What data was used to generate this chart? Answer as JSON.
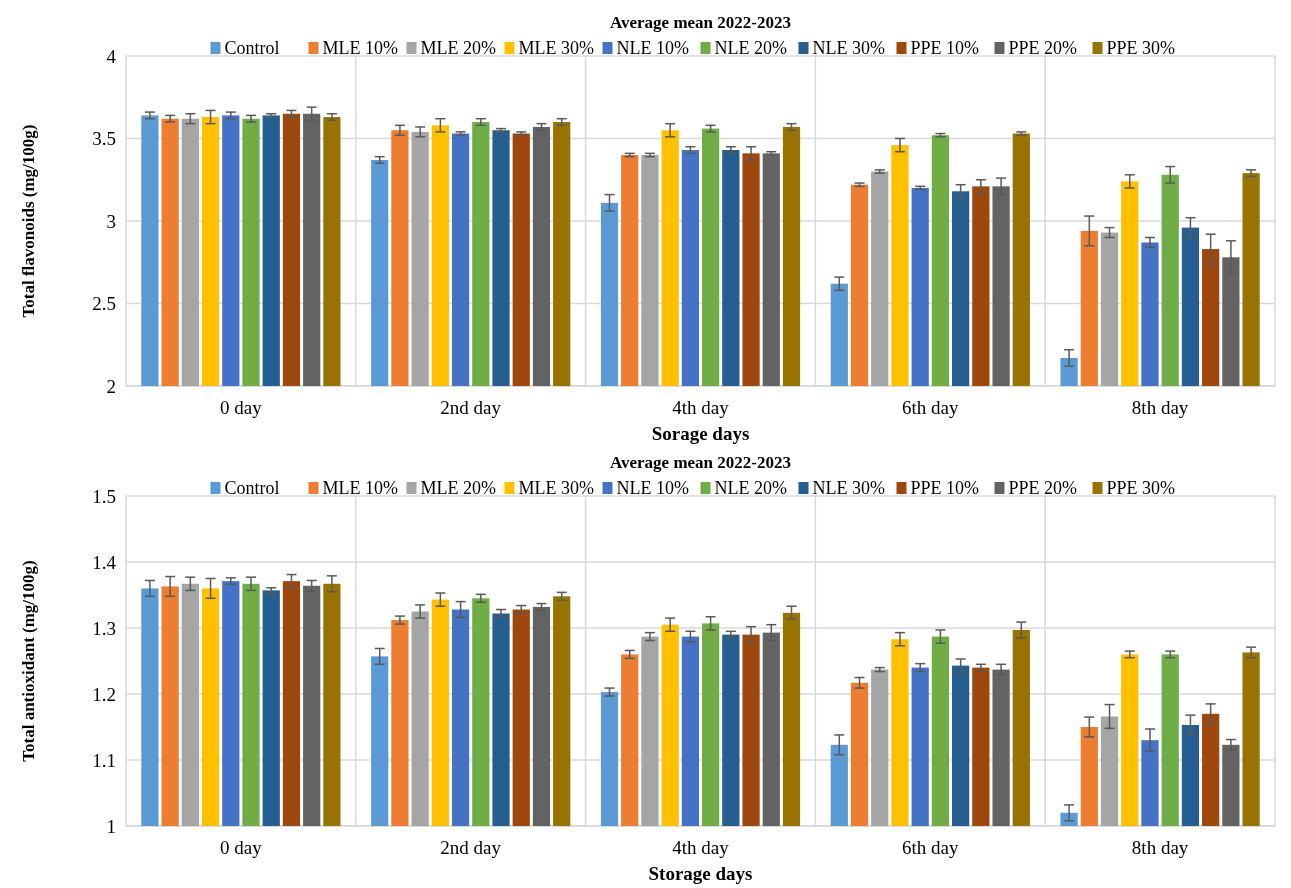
{
  "chart_data": [
    {
      "type": "bar",
      "title": "Average mean 2022-2023",
      "xlabel": "Sorage days",
      "ylabel": "Total flavonoids (mg/100g)",
      "categories": [
        "0 day",
        "2nd day",
        "4th day",
        "6th day",
        "8th day"
      ],
      "ylim": [
        2,
        4
      ],
      "yticks": [
        2,
        2.5,
        3,
        3.5,
        4
      ],
      "grid": true,
      "legend": "top",
      "series": [
        {
          "name": "Control",
          "color": "#5b9bd5",
          "values": [
            3.64,
            3.37,
            3.11,
            2.62,
            2.17
          ],
          "errors": [
            0.02,
            0.02,
            0.05,
            0.04,
            0.05
          ]
        },
        {
          "name": "MLE 10%",
          "color": "#ed7d31",
          "values": [
            3.62,
            3.55,
            3.4,
            3.22,
            2.94
          ],
          "errors": [
            0.02,
            0.03,
            0.01,
            0.01,
            0.09
          ]
        },
        {
          "name": "MLE 20%",
          "color": "#a5a5a5",
          "values": [
            3.62,
            3.54,
            3.4,
            3.3,
            2.93
          ],
          "errors": [
            0.03,
            0.03,
            0.01,
            0.01,
            0.03
          ]
        },
        {
          "name": "MLE 30%",
          "color": "#ffc000",
          "values": [
            3.63,
            3.58,
            3.55,
            3.46,
            3.24
          ],
          "errors": [
            0.04,
            0.04,
            0.04,
            0.04,
            0.04
          ]
        },
        {
          "name": "NLE 10%",
          "color": "#4472c4",
          "values": [
            3.64,
            3.53,
            3.43,
            3.2,
            2.87
          ],
          "errors": [
            0.02,
            0.01,
            0.02,
            0.01,
            0.03
          ]
        },
        {
          "name": "NLE 20%",
          "color": "#70ad47",
          "values": [
            3.62,
            3.6,
            3.56,
            3.52,
            3.28
          ],
          "errors": [
            0.02,
            0.02,
            0.02,
            0.01,
            0.05
          ]
        },
        {
          "name": "NLE 30%",
          "color": "#255e91",
          "values": [
            3.64,
            3.55,
            3.43,
            3.18,
            2.96
          ],
          "errors": [
            0.01,
            0.01,
            0.02,
            0.04,
            0.06
          ]
        },
        {
          "name": "PPE 10%",
          "color": "#9e480e",
          "values": [
            3.65,
            3.53,
            3.41,
            3.21,
            2.83
          ],
          "errors": [
            0.02,
            0.01,
            0.04,
            0.04,
            0.09
          ]
        },
        {
          "name": "PPE 20%",
          "color": "#636363",
          "values": [
            3.65,
            3.57,
            3.41,
            3.21,
            2.78
          ],
          "errors": [
            0.04,
            0.02,
            0.01,
            0.05,
            0.1
          ]
        },
        {
          "name": "PPE 30%",
          "color": "#997300",
          "values": [
            3.63,
            3.6,
            3.57,
            3.53,
            3.29
          ],
          "errors": [
            0.02,
            0.02,
            0.02,
            0.01,
            0.02
          ]
        }
      ]
    },
    {
      "type": "bar",
      "title": "Average mean 2022-2023",
      "xlabel": "Storage days",
      "ylabel": "Total antioxidant (mg/100g)",
      "categories": [
        "0 day",
        "2nd day",
        "4th day",
        "6th day",
        "8th day"
      ],
      "ylim": [
        1,
        1.5
      ],
      "yticks": [
        1,
        1.1,
        1.2,
        1.3,
        1.4,
        1.5
      ],
      "grid": true,
      "legend": "top",
      "series": [
        {
          "name": "Control",
          "color": "#5b9bd5",
          "values": [
            1.36,
            1.257,
            1.203,
            1.123,
            1.02
          ],
          "errors": [
            0.012,
            0.012,
            0.006,
            0.015,
            0.012
          ]
        },
        {
          "name": "MLE 10%",
          "color": "#ed7d31",
          "values": [
            1.363,
            1.312,
            1.26,
            1.217,
            1.15
          ],
          "errors": [
            0.015,
            0.006,
            0.006,
            0.008,
            0.015
          ]
        },
        {
          "name": "MLE 20%",
          "color": "#a5a5a5",
          "values": [
            1.367,
            1.325,
            1.287,
            1.237,
            1.166
          ],
          "errors": [
            0.01,
            0.01,
            0.006,
            0.003,
            0.018
          ]
        },
        {
          "name": "MLE 30%",
          "color": "#ffc000",
          "values": [
            1.36,
            1.343,
            1.305,
            1.283,
            1.26
          ],
          "errors": [
            0.015,
            0.01,
            0.01,
            0.01,
            0.005
          ]
        },
        {
          "name": "NLE 10%",
          "color": "#4472c4",
          "values": [
            1.371,
            1.328,
            1.287,
            1.24,
            1.13
          ],
          "errors": [
            0.005,
            0.012,
            0.008,
            0.006,
            0.017
          ]
        },
        {
          "name": "NLE 20%",
          "color": "#70ad47",
          "values": [
            1.367,
            1.345,
            1.307,
            1.287,
            1.26
          ],
          "errors": [
            0.01,
            0.006,
            0.01,
            0.01,
            0.005
          ]
        },
        {
          "name": "NLE 30%",
          "color": "#255e91",
          "values": [
            1.357,
            1.322,
            1.29,
            1.243,
            1.153
          ],
          "errors": [
            0.004,
            0.006,
            0.005,
            0.01,
            0.015
          ]
        },
        {
          "name": "PPE 10%",
          "color": "#9e480e",
          "values": [
            1.371,
            1.328,
            1.29,
            1.24,
            1.17
          ],
          "errors": [
            0.01,
            0.006,
            0.012,
            0.005,
            0.015
          ]
        },
        {
          "name": "PPE 20%",
          "color": "#636363",
          "values": [
            1.364,
            1.332,
            1.293,
            1.237,
            1.123
          ],
          "errors": [
            0.008,
            0.005,
            0.012,
            0.008,
            0.008
          ]
        },
        {
          "name": "PPE 30%",
          "color": "#997300",
          "values": [
            1.367,
            1.348,
            1.323,
            1.297,
            1.263
          ],
          "errors": [
            0.012,
            0.006,
            0.01,
            0.012,
            0.008
          ]
        }
      ]
    }
  ]
}
